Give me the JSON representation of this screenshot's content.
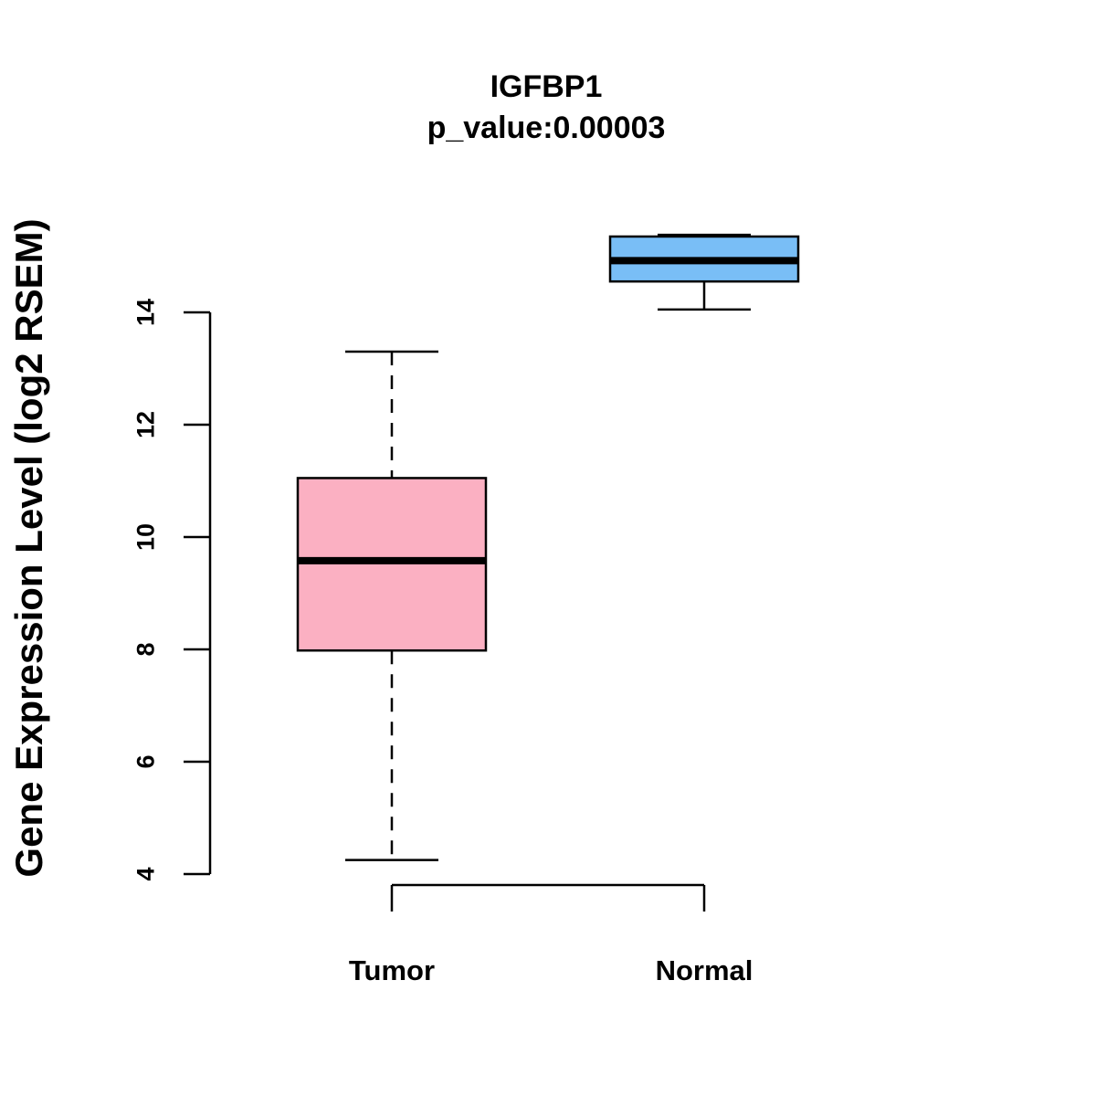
{
  "chart_data": {
    "type": "boxplot",
    "title": "IGFBP1",
    "subtitle": "p_value:0.00003",
    "xlabel": "",
    "ylabel": "Gene Expression Level (log2 RSEM)",
    "ylim": [
      4,
      14
    ],
    "yticks": [
      4,
      6,
      8,
      10,
      12,
      14
    ],
    "categories": [
      "Tumor",
      "Normal"
    ],
    "series": [
      {
        "name": "Tumor",
        "color": "#FBB0C2",
        "whisker_low": 4.25,
        "q1": 7.98,
        "median": 9.58,
        "q3": 11.05,
        "whisker_high": 13.3,
        "whisker_style": "dashed"
      },
      {
        "name": "Normal",
        "color": "#79BEF6",
        "whisker_low": 14.05,
        "q1": 14.55,
        "median": 14.92,
        "q3": 15.35,
        "whisker_high": 15.38,
        "whisker_style": "solid"
      }
    ],
    "grid": false,
    "legend": "none"
  }
}
